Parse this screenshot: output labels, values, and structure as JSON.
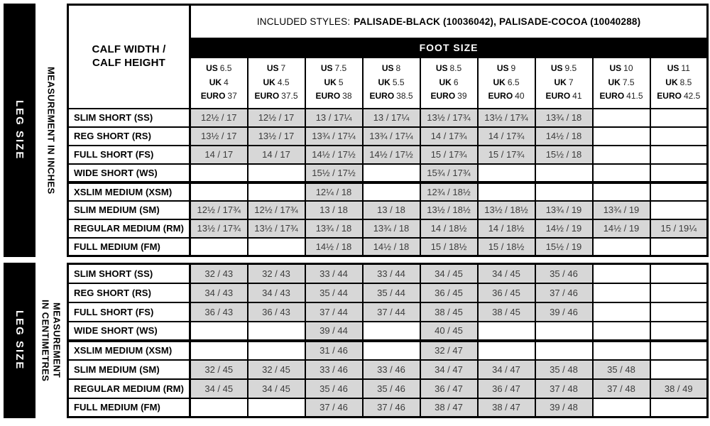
{
  "header": {
    "included_styles_prefix": "INCLUDED STYLES:",
    "included_styles_value": "PALISADE-BLACK (10036042), PALISADE-COCOA (10040288)",
    "calf_line1": "CALF WIDTH /",
    "calf_line2": "CALF HEIGHT",
    "foot_size_label": "FOOT SIZE",
    "size_prefixes": {
      "us": "US",
      "uk": "UK",
      "euro": "EURO"
    },
    "columns": [
      {
        "us": "6.5",
        "uk": "4",
        "euro": "37"
      },
      {
        "us": "7",
        "uk": "4.5",
        "euro": "37.5"
      },
      {
        "us": "7.5",
        "uk": "5",
        "euro": "38"
      },
      {
        "us": "8",
        "uk": "5.5",
        "euro": "38.5"
      },
      {
        "us": "8.5",
        "uk": "6",
        "euro": "39"
      },
      {
        "us": "9",
        "uk": "6.5",
        "euro": "40"
      },
      {
        "us": "9.5",
        "uk": "7",
        "euro": "41"
      },
      {
        "us": "10",
        "uk": "7.5",
        "euro": "41.5"
      },
      {
        "us": "11",
        "uk": "8.5",
        "euro": "42.5"
      }
    ]
  },
  "side_labels": {
    "leg_size": "LEG SIZE",
    "inches": "MEASUREMENT IN INCHES",
    "centimetres_line1": "MEASUREMENT",
    "centimetres_line2": "IN CENTIMETRES"
  },
  "sections": [
    {
      "unit": "inches",
      "rows": [
        {
          "label": "SLIM SHORT (SS)",
          "cells": [
            "12½ / 17",
            "12½ / 17",
            "13 / 17¼",
            "13 / 17¼",
            "13½ / 17¾",
            "13½ / 17¾",
            "13¾ / 18",
            "",
            ""
          ]
        },
        {
          "label": "REG SHORT (RS)",
          "cells": [
            "13½ / 17",
            "13½ / 17",
            "13¾ / 17¼",
            "13¾ / 17¼",
            "14 / 17¾",
            "14 / 17¾",
            "14½ / 18",
            "",
            ""
          ]
        },
        {
          "label": "FULL SHORT (FS)",
          "cells": [
            "14 / 17",
            "14 / 17",
            "14½ / 17½",
            "14½ / 17½",
            "15 / 17¾",
            "15 / 17¾",
            "15½ / 18",
            "",
            ""
          ]
        },
        {
          "label": "WIDE SHORT (WS)",
          "cells": [
            "",
            "",
            "15½ / 17½",
            "",
            "15¾ / 17¾",
            "",
            "",
            "",
            ""
          ]
        },
        {
          "label": "XSLIM MEDIUM (XSM)",
          "cells": [
            "",
            "",
            "12¼ / 18",
            "",
            "12¾ / 18½",
            "",
            "",
            "",
            ""
          ]
        },
        {
          "label": "SLIM MEDIUM (SM)",
          "cells": [
            "12½ / 17¾",
            "12½ / 17¾",
            "13 / 18",
            "13 / 18",
            "13½ / 18½",
            "13½ / 18½",
            "13¾ / 19",
            "13¾ / 19",
            ""
          ]
        },
        {
          "label": "REGULAR MEDIUM (RM)",
          "cells": [
            "13½ / 17¾",
            "13½ / 17¾",
            "13¾ / 18",
            "13¾ / 18",
            "14 / 18½",
            "14 / 18½",
            "14½ / 19",
            "14½ / 19",
            "15 / 19¼"
          ]
        },
        {
          "label": "FULL MEDIUM (FM)",
          "cells": [
            "",
            "",
            "14½ / 18",
            "14½ / 18",
            "15 / 18½",
            "15 / 18½",
            "15½ / 19",
            "",
            ""
          ]
        }
      ]
    },
    {
      "unit": "centimetres",
      "rows": [
        {
          "label": "SLIM SHORT (SS)",
          "cells": [
            "32 / 43",
            "32 / 43",
            "33 / 44",
            "33 / 44",
            "34 / 45",
            "34 / 45",
            "35 / 46",
            "",
            ""
          ]
        },
        {
          "label": "REG SHORT (RS)",
          "cells": [
            "34 / 43",
            "34 / 43",
            "35 / 44",
            "35 / 44",
            "36 / 45",
            "36 / 45",
            "37 / 46",
            "",
            ""
          ]
        },
        {
          "label": "FULL SHORT (FS)",
          "cells": [
            "36 / 43",
            "36 / 43",
            "37 / 44",
            "37 / 44",
            "38 / 45",
            "38 / 45",
            "39 / 46",
            "",
            ""
          ]
        },
        {
          "label": "WIDE SHORT (WS)",
          "cells": [
            "",
            "",
            "39 / 44",
            "",
            "40 / 45",
            "",
            "",
            "",
            ""
          ]
        },
        {
          "label": "XSLIM MEDIUM (XSM)",
          "cells": [
            "",
            "",
            "31 / 46",
            "",
            "32 / 47",
            "",
            "",
            "",
            ""
          ]
        },
        {
          "label": "SLIM MEDIUM (SM)",
          "cells": [
            "32 / 45",
            "32 / 45",
            "33 / 46",
            "33 / 46",
            "34 / 47",
            "34 / 47",
            "35 / 48",
            "35 / 48",
            ""
          ]
        },
        {
          "label": "REGULAR MEDIUM (RM)",
          "cells": [
            "34 / 45",
            "34 / 45",
            "35 / 46",
            "35 / 46",
            "36 / 47",
            "36 / 47",
            "37 / 48",
            "37 / 48",
            "38 / 49"
          ]
        },
        {
          "label": "FULL MEDIUM (FM)",
          "cells": [
            "",
            "",
            "37 / 46",
            "37 / 46",
            "38 / 47",
            "38 / 47",
            "39 / 48",
            "",
            ""
          ]
        }
      ]
    }
  ],
  "colors": {
    "black": "#000000",
    "white": "#ffffff",
    "filled_cell": "#d7d7d7",
    "cell_text": "#3c3c3c"
  }
}
